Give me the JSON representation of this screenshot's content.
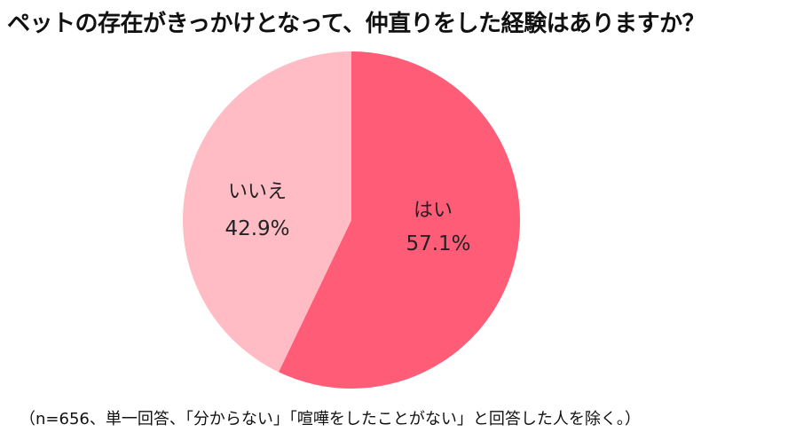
{
  "title": "ペットの存在がきっかけとなって、仲直りをした経験はありますか？",
  "footnote": "（n=656、単一回答、「分からない」「喧嘩をしたことがない」と回答した人を除く。）",
  "colors": {
    "yes": "#ff5c78",
    "no": "#ffbcc4"
  },
  "chart_data": {
    "type": "pie",
    "title": "ペットの存在がきっかけとなって、仲直りをした経験はありますか？",
    "categories": [
      "はい",
      "いいえ"
    ],
    "values": [
      57.1,
      42.9
    ],
    "labels": [
      "57.1%",
      "42.9%"
    ],
    "start_angle_deg": 0,
    "direction": "clockwise",
    "legend": "none"
  }
}
